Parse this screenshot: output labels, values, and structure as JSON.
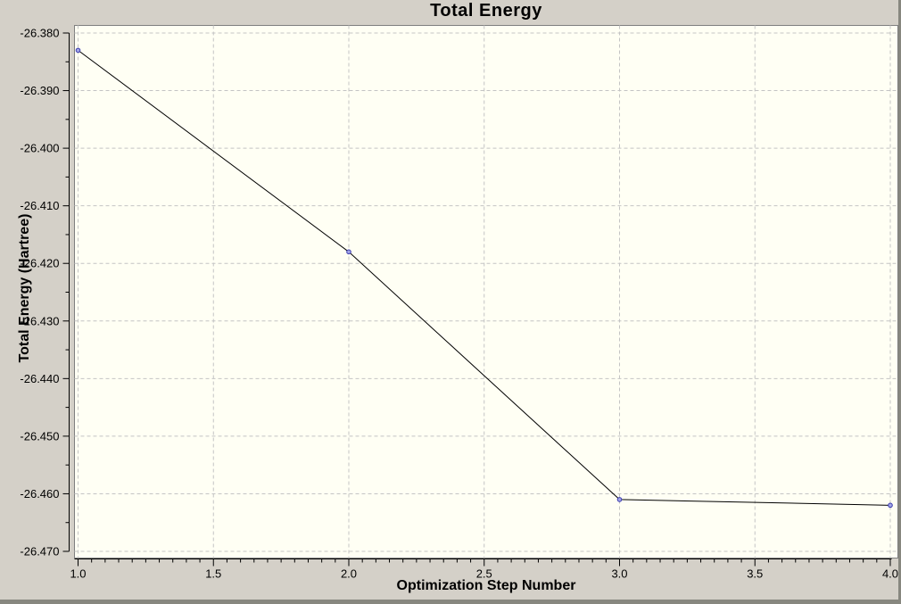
{
  "chart_data": {
    "type": "line",
    "title": "Total Energy",
    "xlabel": "Optimization Step Number",
    "ylabel": "Total Energy (Hartree)",
    "series": [
      {
        "name": "Total Energy",
        "x": [
          1.0,
          2.0,
          3.0,
          4.0
        ],
        "y": [
          -26.383,
          -26.418,
          -26.461,
          -26.462
        ]
      }
    ],
    "xlim": [
      1.0,
      4.0
    ],
    "ylim": [
      -26.47,
      -26.38
    ],
    "x_major_ticks": [
      1.0,
      1.5,
      2.0,
      2.5,
      3.0,
      3.5,
      4.0
    ],
    "x_tick_labels": [
      "1.0",
      "1.5",
      "2.0",
      "2.5",
      "3.0",
      "3.5",
      "4.0"
    ],
    "x_minor_step": 0.05,
    "y_major_ticks": [
      -26.38,
      -26.39,
      -26.4,
      -26.41,
      -26.42,
      -26.43,
      -26.44,
      -26.45,
      -26.46,
      -26.47
    ],
    "y_tick_labels": [
      "-26.380",
      "-26.390",
      "-26.400",
      "-26.410",
      "-26.420",
      "-26.430",
      "-26.440",
      "-26.450",
      "-26.460",
      "-26.470"
    ],
    "y_minor_step": 0.005,
    "grid": {
      "style": "dashed",
      "vertical_on_major": true,
      "horizontal_on_major": true
    },
    "legend": "none",
    "marker": "circle"
  },
  "colors": {
    "window_bg": "#d4d0c8",
    "plot_bg": "#fffff4",
    "grid": "#c4c4c4",
    "plot_border": "#7f7f7f",
    "axis": "#000000",
    "line": "#000000",
    "marker_stroke": "#3a3ab0",
    "marker_fill": "#a2a6e6",
    "text": "#000000",
    "window_edge": "#87877f"
  }
}
